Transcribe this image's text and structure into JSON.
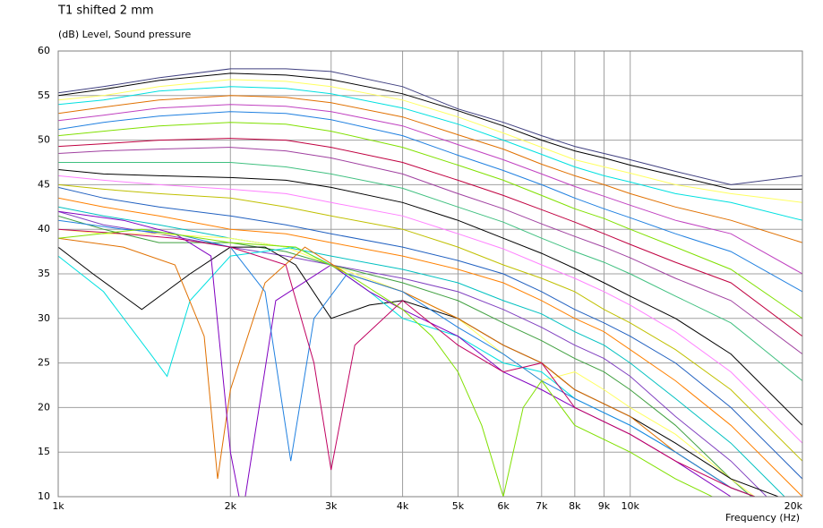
{
  "chart_data": {
    "type": "line",
    "title": "T1 shifted 2 mm",
    "subtitle": "(dB)  Level, Sound pressure",
    "x_label": "Frequency  (Hz)",
    "log_x": true,
    "grid": true,
    "xlim": [
      1000,
      20000
    ],
    "ylim": [
      10,
      60
    ],
    "xticks": [
      {
        "value": 1000,
        "label": "1k"
      },
      {
        "value": 2000,
        "label": "2k"
      },
      {
        "value": 3000,
        "label": "3k"
      },
      {
        "value": 4000,
        "label": "4k"
      },
      {
        "value": 5000,
        "label": "5k"
      },
      {
        "value": 6000,
        "label": "6k"
      },
      {
        "value": 7000,
        "label": "7k"
      },
      {
        "value": 8000,
        "label": "8k"
      },
      {
        "value": 9000,
        "label": "9k"
      },
      {
        "value": 10000,
        "label": "10k"
      },
      {
        "value": 20000,
        "label": "20k"
      }
    ],
    "yticks": [
      10,
      15,
      20,
      25,
      30,
      35,
      40,
      45,
      50,
      55,
      60
    ],
    "series": [
      {
        "color": "#404080",
        "x": [
          1000,
          1200,
          1500,
          2000,
          2500,
          3000,
          4000,
          5000,
          6000,
          7000,
          8000,
          9000,
          10000,
          12000,
          15000,
          20000
        ],
        "values": [
          55.3,
          56,
          57,
          58,
          58,
          57.7,
          56,
          53.5,
          52,
          50.5,
          49.3,
          48.5,
          47.8,
          46.5,
          45,
          46
        ]
      },
      {
        "color": "#000000",
        "x": [
          1000,
          1200,
          1500,
          2000,
          2500,
          3000,
          4000,
          5000,
          6000,
          7000,
          8000,
          9000,
          10000,
          12000,
          15000,
          20000
        ],
        "values": [
          55,
          55.7,
          56.7,
          57.5,
          57.3,
          56.8,
          55.2,
          53.3,
          51.6,
          50,
          48.8,
          48,
          47.2,
          46,
          44.5,
          44.5
        ]
      },
      {
        "color": "#ffff60",
        "x": [
          1000,
          1200,
          1500,
          2000,
          2500,
          3000,
          4000,
          5000,
          6000,
          7000,
          8000,
          9000,
          10000,
          12000,
          15000,
          20000
        ],
        "values": [
          54.5,
          55,
          56,
          56.8,
          56.6,
          56,
          54.5,
          52.6,
          50.8,
          49.2,
          47.8,
          47,
          46.3,
          45,
          44,
          43
        ]
      },
      {
        "color": "#00e0e0",
        "x": [
          1000,
          1200,
          1500,
          2000,
          2500,
          3000,
          4000,
          5000,
          6000,
          7000,
          8000,
          9000,
          10000,
          12000,
          15000,
          20000
        ],
        "values": [
          54,
          54.5,
          55.5,
          56,
          55.8,
          55.2,
          53.6,
          51.8,
          50,
          48.4,
          47,
          46,
          45.3,
          44,
          43,
          41
        ]
      },
      {
        "color": "#e07000",
        "x": [
          1000,
          1200,
          1500,
          2000,
          2500,
          3000,
          4000,
          5000,
          6000,
          7000,
          8000,
          9000,
          10000,
          12000,
          15000,
          20000
        ],
        "values": [
          53,
          53.7,
          54.5,
          55,
          54.8,
          54.2,
          52.6,
          50.6,
          49,
          47.3,
          46,
          45,
          44,
          42.5,
          41,
          38.5
        ]
      },
      {
        "color": "#c040c0",
        "x": [
          1000,
          1200,
          1500,
          2000,
          2500,
          3000,
          4000,
          5000,
          6000,
          7000,
          8000,
          9000,
          10000,
          12000,
          15000,
          20000
        ],
        "values": [
          52.2,
          52.8,
          53.6,
          54,
          53.8,
          53.2,
          51.6,
          49.5,
          47.8,
          46.2,
          44.8,
          43.7,
          42.7,
          41,
          39.5,
          35
        ]
      },
      {
        "color": "#2080e0",
        "x": [
          1000,
          1200,
          1500,
          2000,
          2500,
          3000,
          4000,
          5000,
          6000,
          7000,
          8000,
          9000,
          10000,
          12000,
          15000,
          20000
        ],
        "values": [
          51.2,
          52,
          52.7,
          53.2,
          53,
          52.3,
          50.5,
          48.3,
          46.6,
          45,
          43.5,
          42.3,
          41.3,
          39.5,
          37.5,
          33
        ]
      },
      {
        "color": "#80e000",
        "x": [
          1000,
          1200,
          1500,
          2000,
          2500,
          3000,
          4000,
          5000,
          6000,
          7000,
          8000,
          9000,
          10000,
          12000,
          15000,
          20000
        ],
        "values": [
          50.5,
          51,
          51.6,
          52,
          51.8,
          51,
          49.2,
          47.2,
          45.5,
          43.8,
          42.3,
          41.2,
          40,
          38,
          35.5,
          30
        ]
      },
      {
        "color": "#c00040",
        "x": [
          1000,
          1200,
          1500,
          2000,
          2500,
          3000,
          4000,
          5000,
          6000,
          7000,
          8000,
          9000,
          10000,
          12000,
          15000,
          20000
        ],
        "values": [
          49.3,
          49.6,
          50,
          50.2,
          50,
          49.2,
          47.5,
          45.5,
          43.8,
          42.2,
          40.8,
          39.5,
          38.3,
          36.3,
          34,
          28
        ]
      },
      {
        "color": "#a040a0",
        "x": [
          1000,
          1200,
          1500,
          2000,
          2500,
          3000,
          4000,
          5000,
          6000,
          7000,
          8000,
          9000,
          10000,
          12000,
          15000,
          20000
        ],
        "values": [
          48.5,
          48.8,
          49,
          49.2,
          48.8,
          48,
          46.2,
          44,
          42.3,
          40.6,
          39.2,
          38,
          36.8,
          34.5,
          32,
          26
        ]
      },
      {
        "color": "#40c080",
        "x": [
          1000,
          1200,
          1500,
          2000,
          2500,
          3000,
          4000,
          5000,
          6000,
          7000,
          8000,
          9000,
          10000,
          12000,
          15000,
          20000
        ],
        "values": [
          47.5,
          47.5,
          47.5,
          47.5,
          47,
          46.2,
          44.6,
          42.5,
          40.8,
          39,
          37.5,
          36.3,
          35,
          32.5,
          29.5,
          23
        ]
      },
      {
        "color": "#000000",
        "x": [
          1000,
          1200,
          1500,
          2000,
          2500,
          3000,
          4000,
          5000,
          6000,
          7000,
          8000,
          9000,
          10000,
          12000,
          15000,
          20000
        ],
        "values": [
          46.7,
          46.2,
          46,
          45.8,
          45.5,
          44.7,
          43,
          41,
          39,
          37.3,
          35.6,
          34,
          32.5,
          30,
          26,
          18
        ]
      },
      {
        "color": "#ff80ff",
        "x": [
          1000,
          1200,
          1500,
          2000,
          2500,
          3000,
          4000,
          5000,
          6000,
          7000,
          8000,
          9000,
          10000,
          12000,
          15000,
          20000
        ],
        "values": [
          46,
          45.5,
          45,
          44.5,
          44,
          43,
          41.5,
          39.5,
          37.8,
          36,
          34.5,
          33,
          31.5,
          28.5,
          24,
          16
        ]
      },
      {
        "color": "#c0c000",
        "x": [
          1000,
          1200,
          1500,
          2000,
          2500,
          3000,
          4000,
          5000,
          6000,
          7000,
          8000,
          9000,
          10000,
          12000,
          15000,
          20000
        ],
        "values": [
          45,
          44.5,
          44,
          43.5,
          42.5,
          41.5,
          40,
          38,
          36,
          34.5,
          33,
          31,
          29.5,
          26.5,
          22,
          14
        ]
      },
      {
        "color": "#2060c0",
        "x": [
          1000,
          1200,
          1500,
          2000,
          2500,
          3000,
          4000,
          5000,
          6000,
          7000,
          8000,
          9000,
          10000,
          12000,
          15000,
          20000
        ],
        "values": [
          44.7,
          43.5,
          42.5,
          41.5,
          40.5,
          39.5,
          38,
          36.5,
          35,
          33,
          31,
          29.5,
          28,
          25,
          20,
          12
        ]
      },
      {
        "color": "#ff8000",
        "x": [
          1000,
          1200,
          1500,
          2000,
          2500,
          3000,
          4000,
          5000,
          6000,
          7000,
          8000,
          9000,
          10000,
          12000,
          15000,
          20000
        ],
        "values": [
          43.5,
          42.5,
          41.5,
          40,
          39.5,
          38.5,
          37,
          35.5,
          34,
          32,
          30,
          28.5,
          26.5,
          23,
          18,
          10
        ]
      },
      {
        "color": "#00c0c0",
        "x": [
          1000,
          1200,
          1500,
          2000,
          2500,
          3000,
          4000,
          5000,
          6000,
          7000,
          8000,
          9000,
          10000,
          12000,
          15000,
          20000
        ],
        "values": [
          42.5,
          41.5,
          40.5,
          39,
          38,
          37,
          35.5,
          34,
          32,
          30.5,
          28.5,
          27,
          25,
          21,
          16,
          8
        ]
      },
      {
        "color": "#8040c0",
        "x": [
          1000,
          1200,
          1500,
          2000,
          2500,
          3000,
          4000,
          5000,
          6000,
          7000,
          8000,
          9000,
          10000,
          12000,
          15000,
          20000
        ],
        "values": [
          42,
          40.5,
          39.5,
          38,
          37,
          36,
          34.5,
          33,
          31,
          29,
          27,
          25.5,
          23.5,
          19,
          14,
          6
        ]
      },
      {
        "color": "#40a040",
        "x": [
          1000,
          1200,
          1500,
          2000,
          2500,
          3000,
          4000,
          5000,
          6000,
          7000,
          8000,
          9000,
          10000,
          12000,
          15000,
          20000
        ],
        "values": [
          41.5,
          40,
          38.5,
          38.5,
          37.5,
          36,
          34,
          32,
          29.5,
          27.5,
          25.5,
          24,
          22,
          18,
          12,
          5
        ]
      },
      {
        "color": "#ffff60",
        "x": [
          1000,
          1200,
          1500,
          2000,
          2500,
          3000,
          4000,
          5000,
          6000,
          7000,
          8000,
          9000,
          10000,
          12000,
          15000,
          20000
        ],
        "values": [
          40,
          39.5,
          39.5,
          39,
          38,
          36,
          33,
          30,
          26,
          23,
          24,
          22,
          20,
          17,
          12,
          6
        ]
      },
      {
        "color": "#000000",
        "x": [
          1000,
          1150,
          1400,
          1700,
          2000,
          2300,
          2600,
          3000,
          3500,
          4000,
          5000,
          6000,
          7000,
          8000,
          10000,
          12000,
          15000,
          20000
        ],
        "values": [
          38,
          35,
          31,
          35,
          38,
          38,
          36,
          30,
          31.5,
          32,
          30,
          27,
          25,
          22,
          19,
          16,
          12,
          9
        ]
      },
      {
        "color": "#00e0e0",
        "x": [
          1000,
          1200,
          1450,
          1550,
          1700,
          2000,
          2600,
          3000,
          3500,
          4000,
          5000,
          6000,
          7000,
          8000,
          10000,
          12000,
          15000,
          20000
        ],
        "values": [
          37,
          33,
          26,
          23.5,
          32,
          37,
          38,
          36,
          33,
          30,
          28,
          25,
          24,
          21,
          18,
          15,
          11,
          8
        ]
      },
      {
        "color": "#e07000",
        "x": [
          1000,
          1300,
          1600,
          1800,
          1900,
          2000,
          2300,
          2700,
          3200,
          4000,
          5000,
          6000,
          7000,
          8000,
          10000,
          12000,
          15000,
          20000
        ],
        "values": [
          39,
          38,
          36,
          28,
          12,
          22,
          34,
          38,
          35,
          33,
          30,
          27,
          25,
          22,
          19,
          15,
          11,
          8
        ]
      },
      {
        "color": "#8000c0",
        "x": [
          1000,
          1300,
          1600,
          1850,
          2000,
          2100,
          2400,
          3000,
          3500,
          4000,
          5000,
          6000,
          7000,
          8000,
          10000,
          12000,
          15000,
          20000
        ],
        "values": [
          42,
          41,
          39.5,
          37,
          15,
          8,
          32,
          36,
          33,
          31,
          28,
          24,
          22,
          20,
          17,
          14,
          10,
          7
        ]
      },
      {
        "color": "#2080e0",
        "x": [
          1000,
          1300,
          1600,
          2000,
          2300,
          2550,
          2800,
          3200,
          4000,
          5000,
          6000,
          7000,
          8000,
          10000,
          12000,
          15000,
          20000
        ],
        "values": [
          41,
          40,
          39.5,
          38,
          33,
          14,
          30,
          35,
          33,
          29,
          26,
          23,
          21,
          18,
          15,
          11,
          8
        ]
      },
      {
        "color": "#c00060",
        "x": [
          1000,
          1300,
          1600,
          2000,
          2500,
          2800,
          3000,
          3300,
          4000,
          5000,
          6000,
          7000,
          8000,
          10000,
          12000,
          15000,
          20000
        ],
        "values": [
          40,
          39.5,
          39,
          38,
          36,
          25,
          13,
          27,
          32,
          27,
          24,
          25,
          20,
          17,
          14,
          11,
          8
        ]
      },
      {
        "color": "#80e000",
        "x": [
          1000,
          1400,
          2000,
          2600,
          3200,
          4000,
          4500,
          5000,
          5500,
          6000,
          6500,
          7000,
          8000,
          10000,
          12000,
          15000,
          20000
        ],
        "values": [
          39,
          40,
          38.5,
          38,
          35,
          31,
          28,
          24,
          18,
          10,
          20,
          23,
          18,
          15,
          12,
          9,
          6
        ]
      }
    ]
  }
}
